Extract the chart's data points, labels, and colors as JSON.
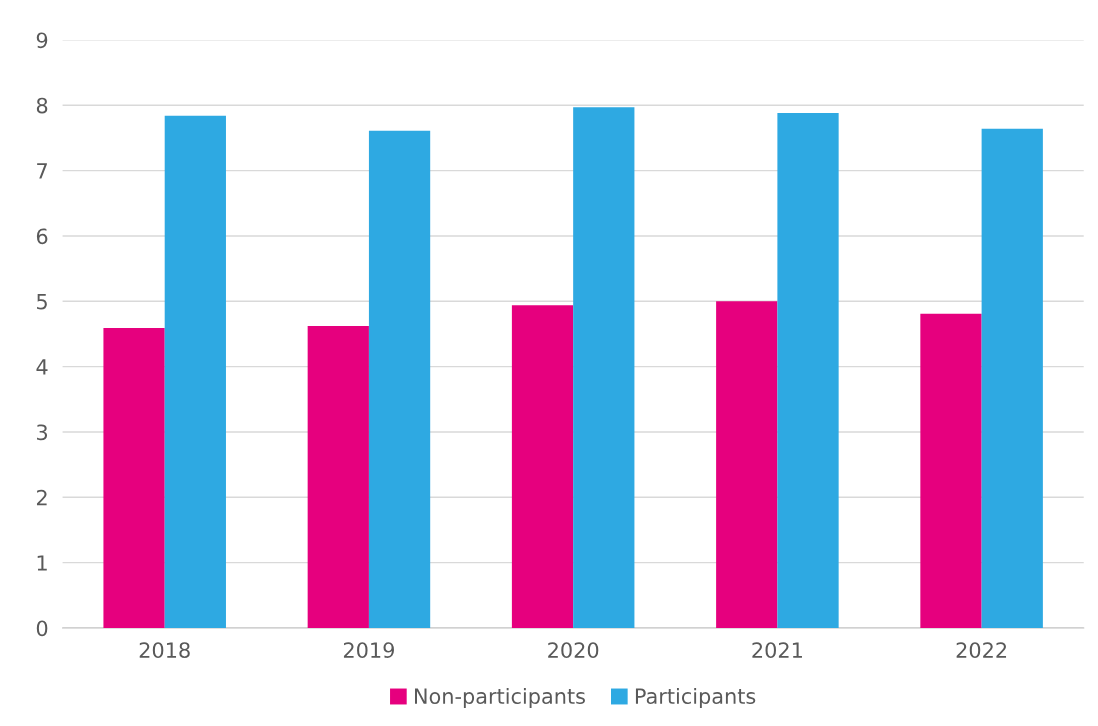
{
  "chart_data": {
    "type": "bar",
    "categories": [
      "2018",
      "2019",
      "2020",
      "2021",
      "2022"
    ],
    "series": [
      {
        "name": "Non-participants",
        "color": "#e6007e",
        "values": [
          4.59,
          4.62,
          4.94,
          5.0,
          4.81
        ]
      },
      {
        "name": "Participants",
        "color": "#2ea9e2",
        "values": [
          7.84,
          7.61,
          7.97,
          7.88,
          7.64
        ]
      }
    ],
    "ylim": [
      0,
      9
    ],
    "yticks": [
      0,
      1,
      2,
      3,
      4,
      5,
      6,
      7,
      8,
      9
    ],
    "grid": "y",
    "legend": "bottom"
  }
}
